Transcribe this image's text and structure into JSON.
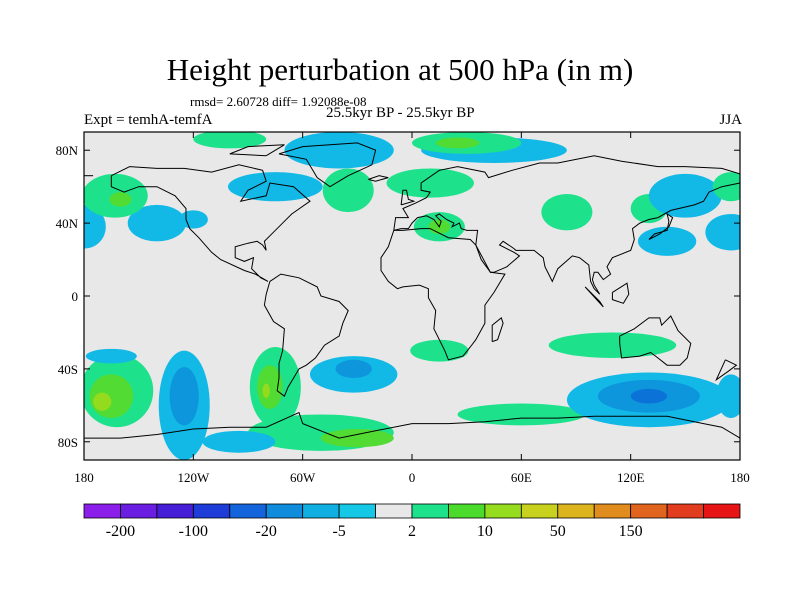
{
  "header": {
    "title": "Height perturbation at 500 hPa (in m)",
    "stats": "rmsd= 2.60728 diff= 1.92088e-08",
    "experiment": "Expt = temhA-temfA",
    "period": "25.5kyr BP - 25.5kyr BP",
    "season": "JJA"
  },
  "axes": {
    "lat_ticks": [
      {
        "label": "80N",
        "lat": 80
      },
      {
        "label": "40N",
        "lat": 40
      },
      {
        "label": "0",
        "lat": 0
      },
      {
        "label": "40S",
        "lat": -40
      },
      {
        "label": "80S",
        "lat": -80
      }
    ],
    "lon_ticks": [
      {
        "label": "180",
        "lon": -180
      },
      {
        "label": "120W",
        "lon": -120
      },
      {
        "label": "60W",
        "lon": -60
      },
      {
        "label": "0",
        "lon": 0
      },
      {
        "label": "60E",
        "lon": 60
      },
      {
        "label": "120E",
        "lon": 120
      },
      {
        "label": "180",
        "lon": 180
      }
    ],
    "lon_range": [
      -180,
      180
    ],
    "lat_range": [
      -90,
      90
    ]
  },
  "colors": {
    "background_field": "#e8e8e8",
    "light_blue": "#12b9e6",
    "mid_blue": "#0e96dc",
    "dark_blue": "#0b73d7",
    "light_green": "#1ee18c",
    "mid_green": "#52db32",
    "yellow_green": "#94db1e"
  },
  "colorbar": {
    "colors": [
      "#8c1eeb",
      "#6a1ee1",
      "#461ed7",
      "#1e3cd7",
      "#1464dc",
      "#0f8cdc",
      "#0fafe1",
      "#14c8e6",
      "#e8e8e8",
      "#1ee18c",
      "#4bdb2d",
      "#96dc1e",
      "#c8d21e",
      "#dcb41e",
      "#e18c1e",
      "#e1641e",
      "#e13c1e",
      "#e61414"
    ],
    "labels": [
      {
        "text": "-200",
        "after_box": 1
      },
      {
        "text": "-100",
        "after_box": 3
      },
      {
        "text": "-20",
        "after_box": 5
      },
      {
        "text": "-5",
        "after_box": 7
      },
      {
        "text": "2",
        "after_box": 9
      },
      {
        "text": "10",
        "after_box": 11
      },
      {
        "text": "50",
        "after_box": 13
      },
      {
        "text": "150",
        "after_box": 15
      }
    ]
  }
}
